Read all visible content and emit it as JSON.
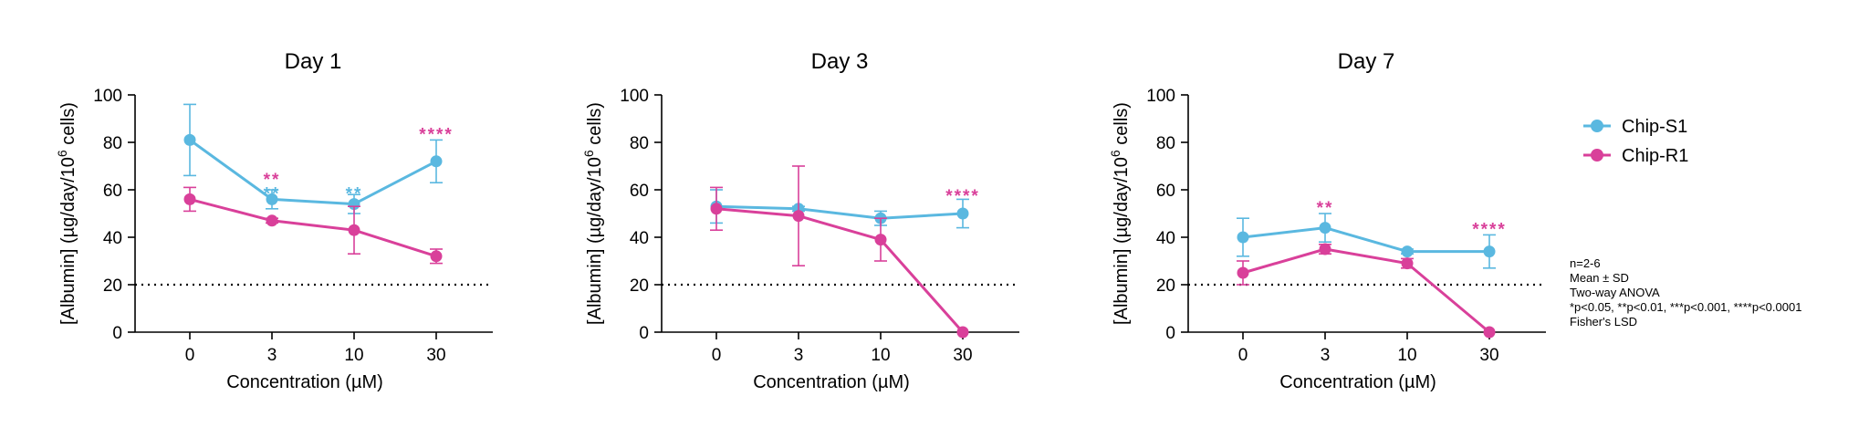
{
  "chart_data": [
    {
      "type": "line",
      "title": "Day 1",
      "xlabel": "Concentration (µM)",
      "ylabel_parts": {
        "before": "[Albumin] (µg/day/10",
        "sup": "6",
        "after": " cells)"
      },
      "categories": [
        "0",
        "3",
        "10",
        "30"
      ],
      "ylim": [
        0,
        100
      ],
      "yticks": [
        0,
        20,
        40,
        60,
        80,
        100
      ],
      "threshold": 20,
      "series": [
        {
          "name": "Chip-S1",
          "color": "#5ab8e0",
          "values": [
            81,
            56,
            54,
            72
          ],
          "errors": [
            15,
            4,
            4,
            9
          ]
        },
        {
          "name": "Chip-R1",
          "color": "#d9409a",
          "values": [
            56,
            47,
            43,
            32
          ],
          "errors": [
            5,
            1,
            10,
            3
          ]
        }
      ],
      "annotations": [
        {
          "index": 1,
          "text": "**",
          "color": "#d9409a",
          "y": 65
        },
        {
          "index": 1,
          "text": "**",
          "color": "#5ab8e0",
          "y": 59
        },
        {
          "index": 2,
          "text": "**",
          "color": "#5ab8e0",
          "y": 59
        },
        {
          "index": 3,
          "text": "****",
          "color": "#d9409a",
          "y": 84
        }
      ]
    },
    {
      "type": "line",
      "title": "Day 3",
      "xlabel": "Concentration (µM)",
      "ylabel_parts": {
        "before": "[Albumin] (µg/day/10",
        "sup": "6",
        "after": " cells)"
      },
      "categories": [
        "0",
        "3",
        "10",
        "30"
      ],
      "ylim": [
        0,
        100
      ],
      "yticks": [
        0,
        20,
        40,
        60,
        80,
        100
      ],
      "threshold": 20,
      "series": [
        {
          "name": "Chip-S1",
          "color": "#5ab8e0",
          "values": [
            53,
            52,
            48,
            50
          ],
          "errors": [
            7,
            1,
            3,
            6
          ]
        },
        {
          "name": "Chip-R1",
          "color": "#d9409a",
          "values": [
            52,
            49,
            39,
            0
          ],
          "errors": [
            9,
            21,
            9,
            0
          ]
        }
      ],
      "annotations": [
        {
          "index": 3,
          "text": "****",
          "color": "#d9409a",
          "y": 58
        }
      ]
    },
    {
      "type": "line",
      "title": "Day 7",
      "xlabel": "Concentration (µM)",
      "ylabel_parts": {
        "before": "[Albumin] (µg/day/10",
        "sup": "6",
        "after": " cells)"
      },
      "categories": [
        "0",
        "3",
        "10",
        "30"
      ],
      "ylim": [
        0,
        100
      ],
      "yticks": [
        0,
        20,
        40,
        60,
        80,
        100
      ],
      "threshold": 20,
      "series": [
        {
          "name": "Chip-S1",
          "color": "#5ab8e0",
          "values": [
            40,
            44,
            34,
            34
          ],
          "errors": [
            8,
            6,
            1,
            7
          ]
        },
        {
          "name": "Chip-R1",
          "color": "#d9409a",
          "values": [
            25,
            35,
            29,
            0
          ],
          "errors": [
            5,
            2,
            2,
            0
          ]
        }
      ],
      "annotations": [
        {
          "index": 1,
          "text": "**",
          "color": "#d9409a",
          "y": 53
        },
        {
          "index": 3,
          "text": "****",
          "color": "#d9409a",
          "y": 44
        }
      ]
    }
  ],
  "legend": [
    {
      "name": "Chip-S1",
      "color": "#5ab8e0"
    },
    {
      "name": "Chip-R1",
      "color": "#d9409a"
    }
  ],
  "footnote": [
    "n=2-6",
    "Mean ± SD",
    "Two-way ANOVA",
    "*p<0.05, **p<0.01, ***p<0.001, ****p<0.0001",
    "Fisher's LSD"
  ]
}
